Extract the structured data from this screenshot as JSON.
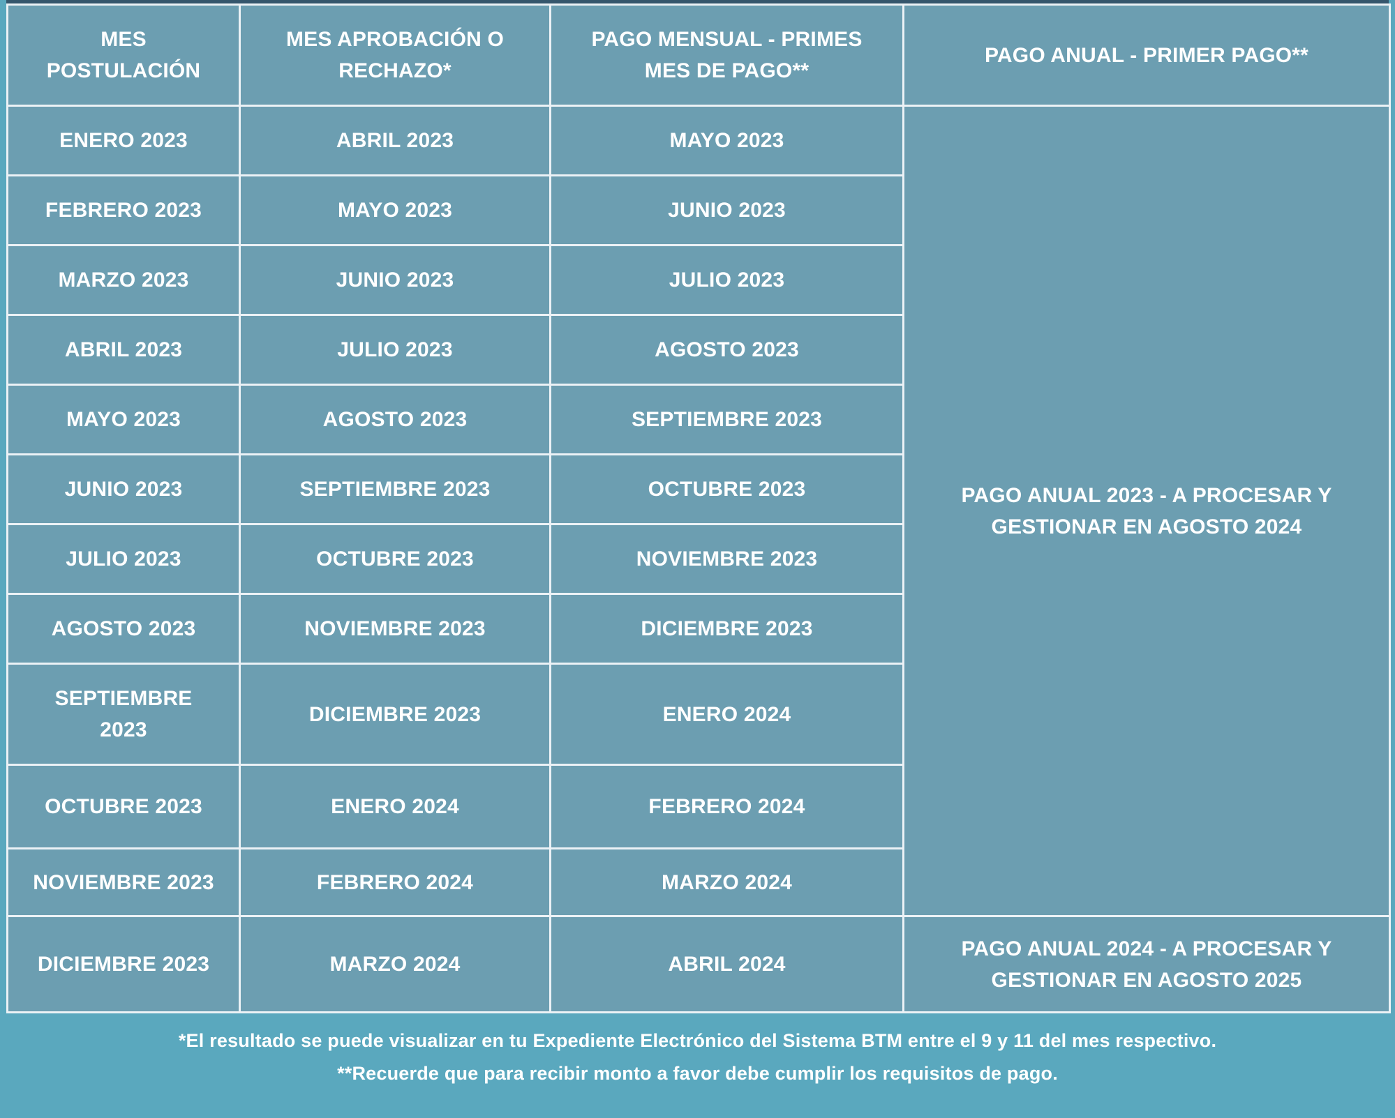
{
  "table": {
    "headers": [
      "MES POSTULACIÓN",
      "MES APROBACIÓN O RECHAZO*",
      "PAGO MENSUAL - PRIMES MES DE PAGO**",
      "PAGO ANUAL - PRIMER PAGO**"
    ],
    "rows": [
      {
        "c0": "ENERO 2023",
        "c1": "ABRIL 2023",
        "c2": "MAYO 2023"
      },
      {
        "c0": "FEBRERO 2023",
        "c1": "MAYO 2023",
        "c2": "JUNIO 2023"
      },
      {
        "c0": "MARZO 2023",
        "c1": "JUNIO 2023",
        "c2": "JULIO 2023"
      },
      {
        "c0": "ABRIL 2023",
        "c1": "JULIO 2023",
        "c2": "AGOSTO 2023"
      },
      {
        "c0": "MAYO 2023",
        "c1": "AGOSTO 2023",
        "c2": "SEPTIEMBRE 2023"
      },
      {
        "c0": "JUNIO 2023",
        "c1": "SEPTIEMBRE 2023",
        "c2": "OCTUBRE 2023"
      },
      {
        "c0": "JULIO 2023",
        "c1": "OCTUBRE 2023",
        "c2": "NOVIEMBRE 2023"
      },
      {
        "c0": "AGOSTO 2023",
        "c1": "NOVIEMBRE 2023",
        "c2": "DICIEMBRE 2023"
      },
      {
        "c0": "SEPTIEMBRE 2023",
        "c1": "DICIEMBRE 2023",
        "c2": "ENERO 2024"
      },
      {
        "c0": "OCTUBRE 2023",
        "c1": "ENERO 2024",
        "c2": "FEBRERO 2024"
      },
      {
        "c0": "NOVIEMBRE 2023",
        "c1": "FEBRERO 2024",
        "c2": "MARZO 2024"
      },
      {
        "c0": "DICIEMBRE 2023",
        "c1": "MARZO 2024",
        "c2": "ABRIL 2024"
      }
    ],
    "annual_2023": "PAGO ANUAL 2023 - A PROCESAR Y GESTIONAR EN AGOSTO 2024",
    "annual_2024": "PAGO ANUAL 2024 - A PROCESAR Y GESTIONAR EN AGOSTO 2025"
  },
  "footnotes": [
    "*El resultado se puede visualizar en tu Expediente Electrónico del Sistema BTM entre el 9 y 11 del mes respectivo.",
    "**Recuerde que para recibir monto a favor debe cumplir los requisitos de pago."
  ],
  "colors": {
    "page_background": "#5AA8BE",
    "cell_background": "#6C9EB1",
    "cell_border": "#ECF2F6",
    "table_top_border": "#35566C",
    "text": "#FFFFFF"
  }
}
